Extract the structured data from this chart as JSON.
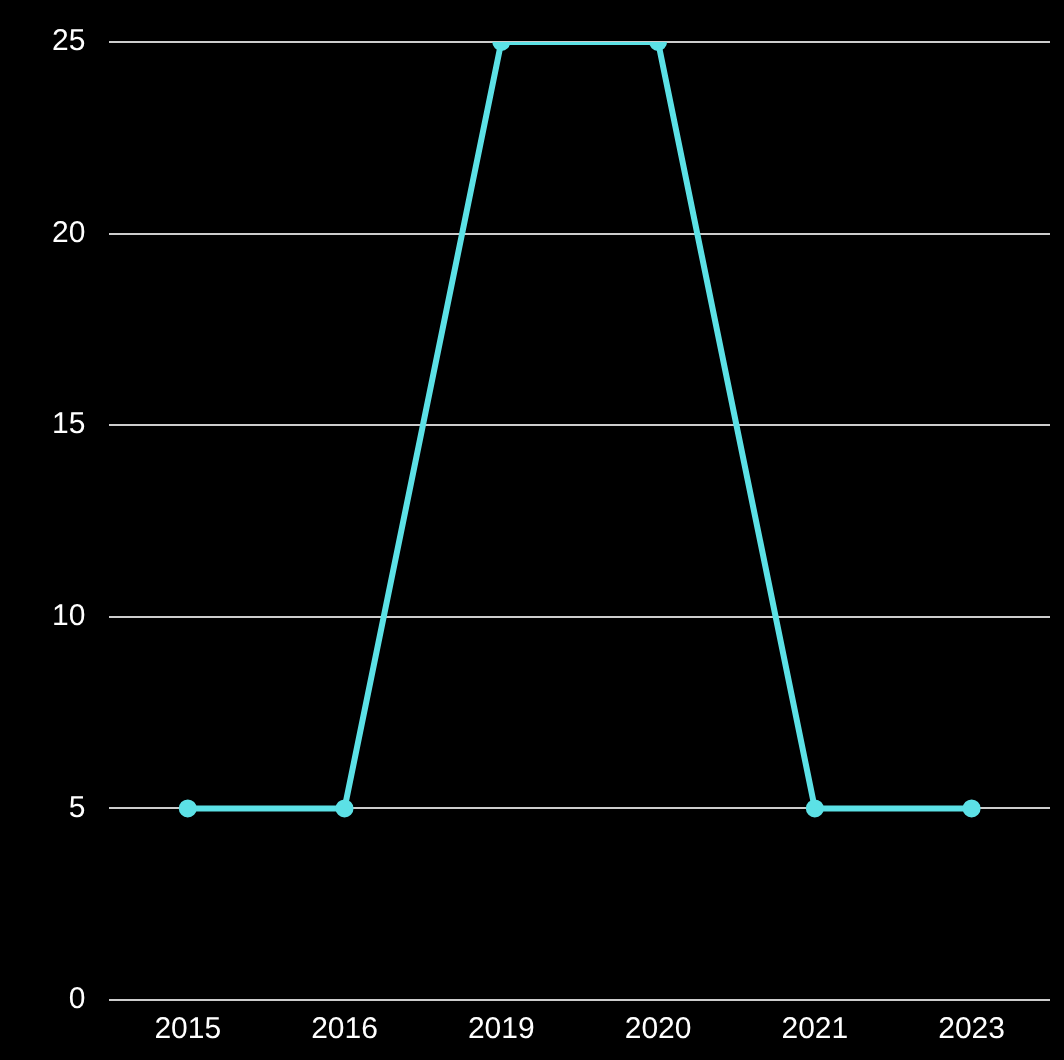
{
  "chart_data": {
    "type": "line",
    "categories": [
      "2015",
      "2016",
      "2019",
      "2020",
      "2021",
      "2023"
    ],
    "series": [
      {
        "color": "#5ce1e6",
        "values": [
          5,
          5,
          25,
          25,
          5,
          5
        ]
      }
    ],
    "ylim": [
      0,
      25
    ],
    "yticks": [
      0,
      5,
      10,
      15,
      20,
      25
    ],
    "grid": "y",
    "legend": false,
    "marker": "circle",
    "line_style": "solid"
  }
}
